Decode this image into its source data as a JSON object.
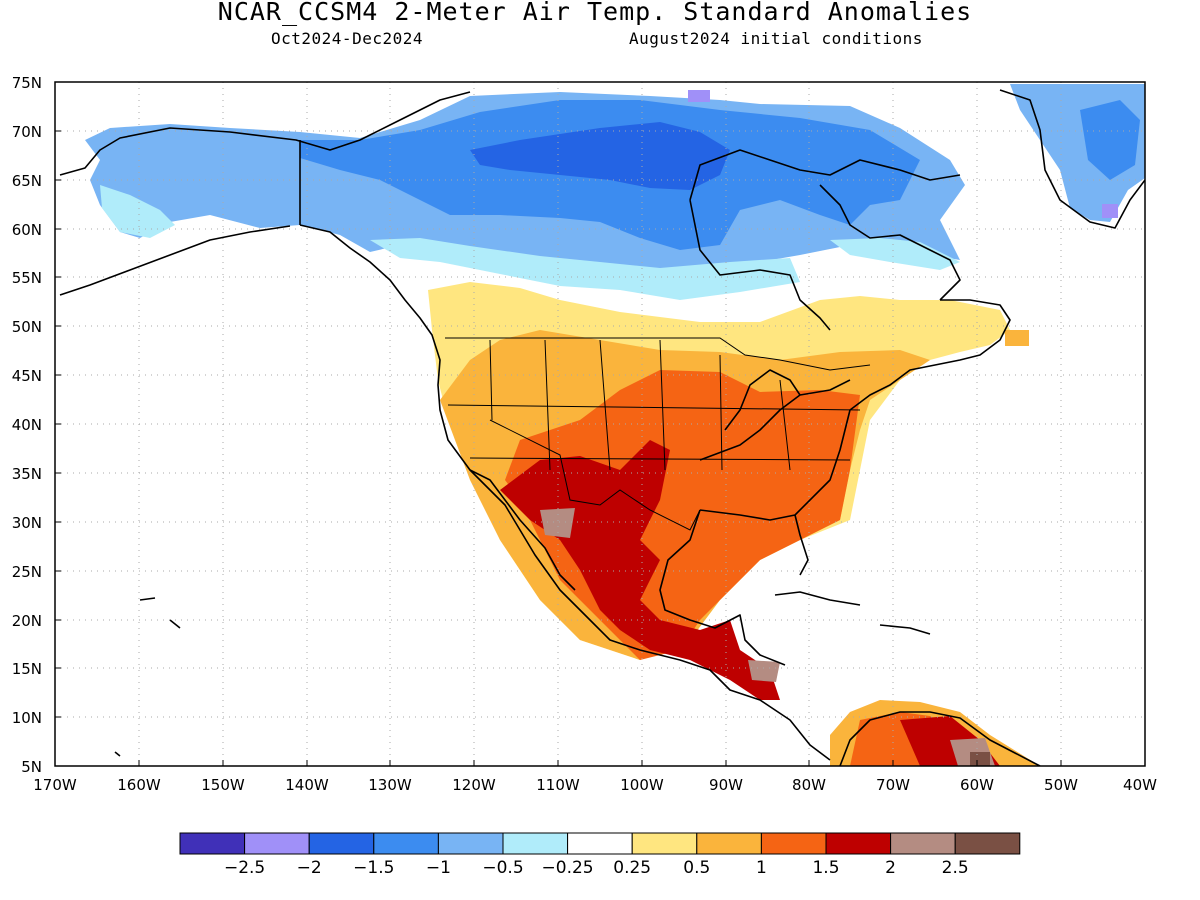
{
  "title": "NCAR_CCSM4 2-Meter Air Temp. Standard Anomalies",
  "subtitle_left": "Oct2024-Dec2024",
  "subtitle_right": "August2024 initial conditions",
  "lat_ticks": [
    "75N",
    "70N",
    "65N",
    "60N",
    "55N",
    "50N",
    "45N",
    "40N",
    "35N",
    "30N",
    "25N",
    "20N",
    "15N",
    "10N",
    "5N"
  ],
  "lon_ticks": [
    "170W",
    "160W",
    "150W",
    "140W",
    "130W",
    "120W",
    "110W",
    "100W",
    "90W",
    "80W",
    "70W",
    "60W",
    "50W",
    "40W"
  ],
  "colorbar": {
    "colors": [
      "#4030b8",
      "#a090f8",
      "#2464e4",
      "#3c8cf0",
      "#78b4f4",
      "#b0ecfa",
      "#ffffff",
      "#ffe680",
      "#fab43c",
      "#f56414",
      "#be0000",
      "#b48c82",
      "#7a5044"
    ],
    "labels": [
      "−2.5",
      "−2",
      "−1.5",
      "−1",
      "−0.5",
      "−0.25",
      "0.25",
      "0.5",
      "1",
      "1.5",
      "2",
      "2.5"
    ]
  }
}
